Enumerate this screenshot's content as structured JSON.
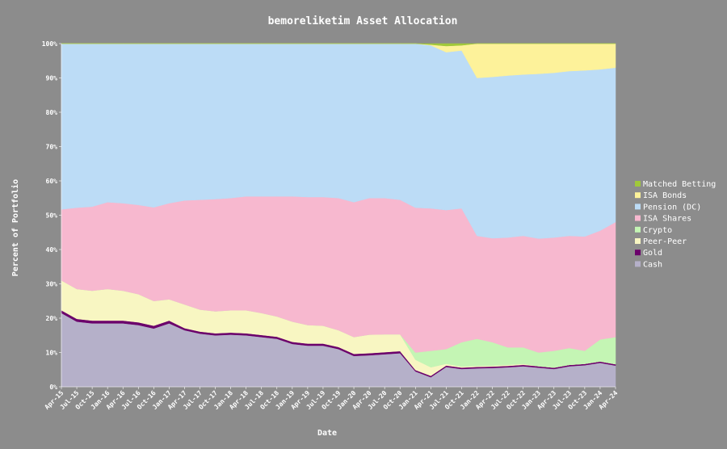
{
  "chart_data": {
    "type": "stacked_area",
    "title": "bemoreliketim Asset Allocation",
    "x_label": "Date",
    "y_label": "Percent of Portfolio",
    "categories": [
      "Apr-15",
      "Jul-15",
      "Oct-15",
      "Jan-16",
      "Apr-16",
      "Jul-16",
      "Oct-16",
      "Jan-17",
      "Apr-17",
      "Jul-17",
      "Oct-17",
      "Jan-18",
      "Apr-18",
      "Jul-18",
      "Oct-18",
      "Jan-19",
      "Apr-19",
      "Jul-19",
      "Oct-19",
      "Jan-20",
      "Apr-20",
      "Jul-20",
      "Oct-20",
      "Jan-21",
      "Apr-21",
      "Jul-21",
      "Oct-21",
      "Jan-22",
      "Apr-22",
      "Jul-22",
      "Oct-22",
      "Jan-23",
      "Apr-23",
      "Jul-23",
      "Oct-23",
      "Jan-24",
      "Apr-24"
    ],
    "ylim": [
      0,
      100
    ],
    "yticks": [
      {
        "value": 0,
        "label": "0%"
      },
      {
        "value": 10,
        "label": "10%"
      },
      {
        "value": 20,
        "label": "20%"
      },
      {
        "value": 30,
        "label": "30%"
      },
      {
        "value": 40,
        "label": "40%"
      },
      {
        "value": 50,
        "label": "50%"
      },
      {
        "value": 60,
        "label": "60%"
      },
      {
        "value": 70,
        "label": "70%"
      },
      {
        "value": 80,
        "label": "80%"
      },
      {
        "value": 90,
        "label": "90%"
      },
      {
        "value": 100,
        "label": "100%"
      }
    ],
    "legend": "right",
    "series": [
      {
        "name": "Cash",
        "color": "#b5b0c9",
        "values": [
          21.5,
          19,
          18.5,
          18.5,
          18.5,
          18,
          17,
          18.5,
          16.5,
          15.5,
          15,
          15.2,
          15,
          14.5,
          14,
          12.5,
          12,
          12,
          11,
          9,
          9.2,
          9.5,
          9.8,
          4.5,
          2.8,
          5.8,
          5.2,
          5.4,
          5.5,
          5.7,
          6,
          5.6,
          5.2,
          6,
          6.3,
          7,
          6.2
        ]
      },
      {
        "name": "Gold",
        "color": "#6b006b",
        "values": [
          0.8,
          0.8,
          0.8,
          0.8,
          0.8,
          0.8,
          0.8,
          0.8,
          0.6,
          0.6,
          0.6,
          0.6,
          0.6,
          0.6,
          0.6,
          0.6,
          0.6,
          0.6,
          0.6,
          0.6,
          0.6,
          0.6,
          0.6,
          0.4,
          0.4,
          0.4,
          0.4,
          0.4,
          0.4,
          0.4,
          0.4,
          0.4,
          0.4,
          0.4,
          0.4,
          0.4,
          0.4
        ]
      },
      {
        "name": "Peer-Peer",
        "color": "#f8f6c2",
        "values": [
          8.7,
          8.7,
          8.7,
          9.2,
          8.7,
          8.2,
          7.2,
          6.2,
          6.9,
          6.4,
          6.4,
          6.5,
          6.7,
          6.4,
          5.9,
          5.9,
          5.4,
          5.2,
          4.9,
          4.9,
          5.4,
          5.2,
          4.9,
          3,
          2.5,
          0.5,
          0.3,
          0.3,
          0.3,
          0.3,
          0.3,
          0,
          0,
          0,
          0,
          0,
          0
        ]
      },
      {
        "name": "Crypto",
        "color": "#c4f5b4",
        "values": [
          0,
          0,
          0,
          0,
          0,
          0,
          0,
          0,
          0,
          0,
          0,
          0,
          0,
          0,
          0,
          0,
          0,
          0,
          0,
          0,
          0,
          0,
          0,
          2.1,
          4.8,
          4.3,
          7.1,
          7.9,
          6.8,
          5.1,
          4.8,
          4,
          4.9,
          4.9,
          3.8,
          6.4,
          7.9
        ]
      },
      {
        "name": "ISA Shares",
        "color": "#f7b8cf",
        "values": [
          20.7,
          23.7,
          24.5,
          25.3,
          25.5,
          26,
          27.3,
          28,
          30.3,
          32,
          32.7,
          32.7,
          33.2,
          34,
          35,
          36.5,
          37.3,
          37.5,
          38.5,
          39.3,
          39.8,
          39.7,
          39.2,
          42.2,
          41.5,
          40.5,
          39,
          30,
          30.3,
          32,
          32.5,
          33.2,
          33,
          32.7,
          33.3,
          31.7,
          33.5
        ]
      },
      {
        "name": "Pension (DC)",
        "color": "#bcdcf6",
        "values": [
          48.3,
          47.8,
          47.5,
          46.2,
          46.5,
          47,
          47.7,
          46.5,
          45.7,
          45.5,
          45.3,
          45,
          44.5,
          44.5,
          44.5,
          44.5,
          44.7,
          44.7,
          45,
          46.2,
          45,
          45,
          45.5,
          47.8,
          47.5,
          46,
          46,
          46,
          47,
          47.2,
          47,
          48,
          48,
          48,
          48.4,
          47,
          45
        ]
      },
      {
        "name": "ISA Bonds",
        "color": "#fdf29a",
        "values": [
          0,
          0,
          0,
          0,
          0,
          0,
          0,
          0,
          0,
          0,
          0,
          0,
          0,
          0,
          0,
          0,
          0,
          0,
          0,
          0,
          0,
          0,
          0,
          0,
          0.2,
          1.8,
          1.5,
          10,
          9.7,
          9.3,
          9,
          8.8,
          8.5,
          8,
          7.8,
          7.5,
          7
        ]
      },
      {
        "name": "Matched Betting",
        "color": "#a0c83a",
        "values": [
          0,
          0,
          0,
          0,
          0,
          0,
          0,
          0,
          0,
          0,
          0,
          0,
          0,
          0,
          0,
          0,
          0,
          0,
          0,
          0,
          0,
          0,
          0,
          0,
          0.3,
          0.7,
          0.5,
          0,
          0,
          0,
          0,
          0,
          0,
          0,
          0,
          0,
          0
        ]
      }
    ]
  }
}
